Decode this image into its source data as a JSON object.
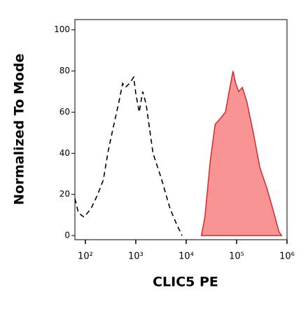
{
  "chart_data": {
    "type": "histogram-overlay",
    "xlabel": "CLIC5 PE",
    "ylabel": "Normalized To Mode",
    "xscale": "log",
    "xlim": [
      62,
      1000000
    ],
    "ylim": [
      -2,
      105
    ],
    "xticks": [
      {
        "value": 100,
        "label": "10²"
      },
      {
        "value": 1000,
        "label": "10³"
      },
      {
        "value": 10000,
        "label": "10⁴"
      },
      {
        "value": 100000,
        "label": "10⁵"
      },
      {
        "value": 1000000,
        "label": "10⁶"
      }
    ],
    "yticks": [
      0,
      20,
      40,
      60,
      80,
      100
    ],
    "series": [
      {
        "style": "dashed",
        "color": "#000000",
        "x": [
          62,
          73,
          94,
          129,
          176,
          227,
          283,
          353,
          454,
          549,
          622,
          750,
          909,
          1000,
          1170,
          1370,
          1600,
          2200,
          3200,
          4800,
          6600,
          8300
        ],
        "values": [
          18,
          11,
          9,
          13,
          20,
          27,
          41,
          52,
          64,
          74,
          72,
          74,
          77,
          69,
          60,
          70,
          64,
          40,
          28,
          13,
          5,
          0
        ]
      },
      {
        "style": "filled",
        "color": "#d42a2a",
        "fill": "#f99494",
        "x": [
          20000,
          23500,
          30000,
          37500,
          48000,
          60000,
          70000,
          85000,
          96000,
          110000,
          130000,
          160000,
          215000,
          290000,
          400000,
          550000,
          690000,
          780000
        ],
        "values": [
          0,
          9,
          36,
          54,
          57,
          60,
          69,
          80,
          74,
          70,
          72,
          65,
          50,
          33,
          23,
          11,
          2,
          0
        ]
      }
    ]
  }
}
